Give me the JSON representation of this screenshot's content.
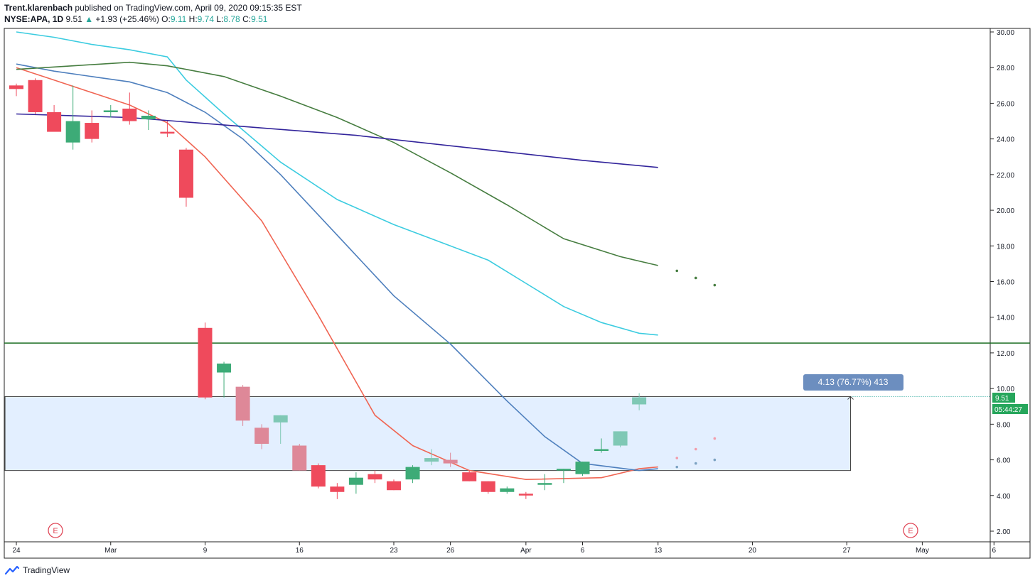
{
  "header": {
    "author": "Trent.klarenbach",
    "published_text": "published on TradingView.com, April 09, 2020 09:15:35 EST",
    "symbol": "NYSE:APA, 1D",
    "last": "9.51",
    "change": "+1.93 (+25.46%)",
    "o_label": "O:",
    "o_value": "9.11",
    "h_label": "H:",
    "h_value": "9.74",
    "l_label": "L:",
    "l_value": "8.78",
    "c_label": "C:",
    "c_value": "9.51"
  },
  "footer": {
    "brand": "TradingView"
  },
  "colors": {
    "up": "#26a69a",
    "down": "#ef5350",
    "up_candle": "#3dab77",
    "down_candle": "#ef4a5c",
    "hline": "#1b6d22",
    "box_fill": "#e3efff",
    "price_tag": "#26a65b",
    "measure_label": "#6c8ebf"
  },
  "chart_data": {
    "type": "candlestick",
    "x_tick_labels": [
      "24",
      "Mar",
      "9",
      "16",
      "23",
      "26",
      "Apr",
      "6",
      "13",
      "20",
      "27",
      "May",
      "6"
    ],
    "y_tick_labels": [
      "30.00",
      "28.00",
      "26.00",
      "24.00",
      "22.00",
      "20.00",
      "18.00",
      "16.00",
      "14.00",
      "12.00",
      "10.00",
      "8.00",
      "6.00",
      "4.00",
      "2.00"
    ],
    "ylim": [
      1.5,
      30.2
    ],
    "candles": [
      {
        "o": 26.8,
        "h": 27.1,
        "l": 26.4,
        "c": 27.0,
        "light": false,
        "down": true
      },
      {
        "o": 27.3,
        "h": 27.4,
        "l": 25.4,
        "c": 25.5,
        "light": false,
        "down": true
      },
      {
        "o": 25.5,
        "h": 25.9,
        "l": 24.5,
        "c": 24.4,
        "light": false,
        "down": true
      },
      {
        "o": 23.8,
        "h": 27.0,
        "l": 23.4,
        "c": 25.0,
        "light": false,
        "down": false
      },
      {
        "o": 24.9,
        "h": 25.6,
        "l": 23.8,
        "c": 24.0,
        "light": false,
        "down": true
      },
      {
        "o": 25.5,
        "h": 25.9,
        "l": 25.2,
        "c": 25.6,
        "light": false,
        "down": false
      },
      {
        "o": 25.7,
        "h": 26.6,
        "l": 24.8,
        "c": 25.0,
        "light": false,
        "down": true
      },
      {
        "o": 25.1,
        "h": 25.6,
        "l": 24.5,
        "c": 25.3,
        "light": false,
        "down": false
      },
      {
        "o": 24.4,
        "h": 25.0,
        "l": 24.1,
        "c": 24.3,
        "light": false,
        "down": true
      },
      {
        "o": 23.4,
        "h": 23.5,
        "l": 20.2,
        "c": 20.7,
        "light": false,
        "down": true
      },
      {
        "o": 13.4,
        "h": 13.7,
        "l": 9.4,
        "c": 9.5,
        "light": false,
        "down": true
      },
      {
        "o": 10.9,
        "h": 11.5,
        "l": 9.5,
        "c": 11.4,
        "light": false,
        "down": false
      },
      {
        "o": 10.1,
        "h": 10.2,
        "l": 7.9,
        "c": 8.2,
        "light": true,
        "down": true
      },
      {
        "o": 7.8,
        "h": 8.0,
        "l": 6.6,
        "c": 6.9,
        "light": true,
        "down": true
      },
      {
        "o": 8.1,
        "h": 8.5,
        "l": 6.9,
        "c": 8.5,
        "light": true,
        "down": false
      },
      {
        "o": 6.8,
        "h": 6.9,
        "l": 5.4,
        "c": 5.4,
        "light": true,
        "down": true
      },
      {
        "o": 5.7,
        "h": 5.8,
        "l": 4.4,
        "c": 4.5,
        "light": false,
        "down": true
      },
      {
        "o": 4.5,
        "h": 4.7,
        "l": 3.8,
        "c": 4.2,
        "light": false,
        "down": true
      },
      {
        "o": 4.6,
        "h": 5.3,
        "l": 4.1,
        "c": 5.0,
        "light": false,
        "down": false
      },
      {
        "o": 5.2,
        "h": 5.4,
        "l": 4.7,
        "c": 4.9,
        "light": false,
        "down": true
      },
      {
        "o": 4.8,
        "h": 4.9,
        "l": 4.3,
        "c": 4.3,
        "light": false,
        "down": true
      },
      {
        "o": 4.9,
        "h": 5.7,
        "l": 4.7,
        "c": 5.6,
        "light": false,
        "down": false
      },
      {
        "o": 5.9,
        "h": 6.6,
        "l": 5.7,
        "c": 6.1,
        "light": true,
        "down": false
      },
      {
        "o": 6.0,
        "h": 6.4,
        "l": 5.6,
        "c": 5.8,
        "light": true,
        "down": true
      },
      {
        "o": 5.3,
        "h": 5.4,
        "l": 4.8,
        "c": 4.8,
        "light": false,
        "down": true
      },
      {
        "o": 4.8,
        "h": 4.8,
        "l": 4.1,
        "c": 4.2,
        "light": false,
        "down": true
      },
      {
        "o": 4.2,
        "h": 4.5,
        "l": 4.1,
        "c": 4.4,
        "light": false,
        "down": false
      },
      {
        "o": 4.1,
        "h": 4.2,
        "l": 3.8,
        "c": 4.0,
        "light": false,
        "down": true
      },
      {
        "o": 4.6,
        "h": 5.2,
        "l": 4.3,
        "c": 4.7,
        "light": false,
        "down": false
      },
      {
        "o": 5.4,
        "h": 5.5,
        "l": 4.7,
        "c": 5.5,
        "light": false,
        "down": false
      },
      {
        "o": 5.2,
        "h": 5.9,
        "l": 5.1,
        "c": 5.9,
        "light": false,
        "down": false
      },
      {
        "o": 6.5,
        "h": 7.2,
        "l": 6.4,
        "c": 6.6,
        "light": false,
        "down": false
      },
      {
        "o": 6.8,
        "h": 7.6,
        "l": 6.7,
        "c": 7.6,
        "light": true,
        "down": false
      },
      {
        "o": 9.11,
        "h": 9.74,
        "l": 8.78,
        "c": 9.51,
        "light": true,
        "down": false
      }
    ],
    "ma_series": [
      {
        "color": "#f06553",
        "points": [
          [
            0,
            28.0
          ],
          [
            2,
            27.3
          ],
          [
            4,
            26.6
          ],
          [
            6,
            25.9
          ],
          [
            8,
            24.9
          ],
          [
            10,
            23.0
          ],
          [
            13,
            19.4
          ],
          [
            16,
            14.1
          ],
          [
            19,
            8.5
          ],
          [
            21,
            6.8
          ],
          [
            24,
            5.4
          ],
          [
            27,
            4.9
          ],
          [
            31,
            5.0
          ],
          [
            33,
            5.5
          ],
          [
            34,
            5.6
          ]
        ]
      },
      {
        "color": "#4e7fbd",
        "points": [
          [
            0,
            28.2
          ],
          [
            2,
            27.8
          ],
          [
            4,
            27.5
          ],
          [
            6,
            27.2
          ],
          [
            8,
            26.6
          ],
          [
            10,
            25.5
          ],
          [
            12,
            24.0
          ],
          [
            14,
            22.0
          ],
          [
            17,
            18.6
          ],
          [
            20,
            15.2
          ],
          [
            23,
            12.5
          ],
          [
            26,
            9.3
          ],
          [
            28,
            7.3
          ],
          [
            30,
            5.8
          ],
          [
            33,
            5.4
          ],
          [
            34,
            5.5
          ]
        ]
      },
      {
        "color": "#3ccce0",
        "points": [
          [
            0,
            30.0
          ],
          [
            2,
            29.7
          ],
          [
            4,
            29.3
          ],
          [
            6,
            29.0
          ],
          [
            8,
            28.6
          ],
          [
            9,
            27.3
          ],
          [
            11,
            25.4
          ],
          [
            14,
            22.7
          ],
          [
            17,
            20.6
          ],
          [
            20,
            19.2
          ],
          [
            23,
            18.0
          ],
          [
            25,
            17.2
          ],
          [
            27,
            15.9
          ],
          [
            29,
            14.6
          ],
          [
            31,
            13.7
          ],
          [
            33,
            13.1
          ],
          [
            34,
            13.0
          ]
        ]
      },
      {
        "color": "#467d40",
        "points": [
          [
            0,
            27.9
          ],
          [
            3,
            28.1
          ],
          [
            6,
            28.3
          ],
          [
            8,
            28.1
          ],
          [
            11,
            27.5
          ],
          [
            14,
            26.4
          ],
          [
            17,
            25.2
          ],
          [
            20,
            23.8
          ],
          [
            23,
            22.1
          ],
          [
            26,
            20.3
          ],
          [
            29,
            18.4
          ],
          [
            32,
            17.4
          ],
          [
            34,
            16.9
          ]
        ]
      },
      {
        "color": "#32249b",
        "points": [
          [
            0,
            25.4
          ],
          [
            6,
            25.2
          ],
          [
            12,
            24.7
          ],
          [
            18,
            24.2
          ],
          [
            24,
            23.5
          ],
          [
            30,
            22.8
          ],
          [
            34,
            22.4
          ]
        ]
      }
    ],
    "dot_series": [
      {
        "color": "#467d40",
        "points": [
          [
            35,
            16.6
          ],
          [
            36,
            16.2
          ],
          [
            37,
            15.8
          ]
        ]
      },
      {
        "color": "#f29caa",
        "points": [
          [
            35,
            6.1
          ],
          [
            36,
            6.6
          ],
          [
            37,
            7.2
          ]
        ]
      },
      {
        "color": "#7ba2c2",
        "points": [
          [
            35,
            5.6
          ],
          [
            36,
            5.8
          ],
          [
            37,
            6.0
          ]
        ]
      }
    ],
    "horizontal_line": 12.55,
    "range_box": {
      "top": 9.55,
      "bottom": 5.4,
      "x_start": -0.6,
      "x_end": 44.2
    },
    "measure_label": "4.13 (76.77%) 413",
    "last_price_tag": "9.51",
    "countdown_tag": "05:44:27",
    "event_marker": "E"
  }
}
